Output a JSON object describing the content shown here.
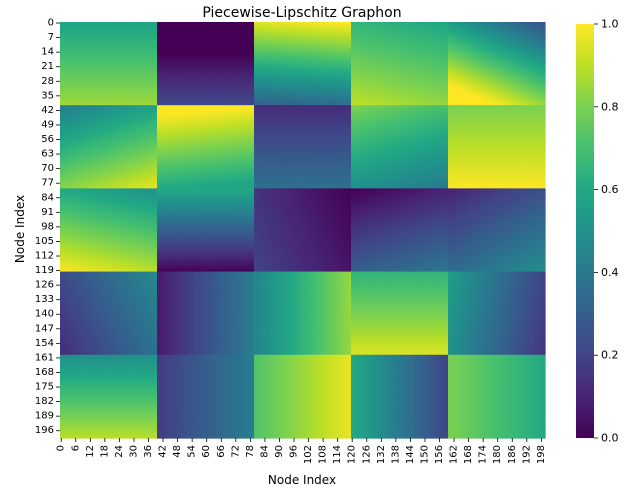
{
  "chart_data": {
    "type": "heatmap",
    "title": "Piecewise-Lipschitz Graphon",
    "xlabel": "Node Index",
    "ylabel": "Node Index",
    "n": 200,
    "x_tick_labels": [
      "0",
      "6",
      "12",
      "18",
      "24",
      "30",
      "36",
      "42",
      "48",
      "54",
      "60",
      "66",
      "72",
      "78",
      "84",
      "90",
      "96",
      "102",
      "108",
      "114",
      "120",
      "126",
      "132",
      "138",
      "144",
      "150",
      "156",
      "162",
      "168",
      "174",
      "180",
      "186",
      "192",
      "198"
    ],
    "y_tick_labels": [
      "0",
      "7",
      "14",
      "21",
      "28",
      "35",
      "42",
      "49",
      "56",
      "63",
      "70",
      "77",
      "84",
      "91",
      "98",
      "105",
      "112",
      "119",
      "126",
      "133",
      "140",
      "147",
      "154",
      "161",
      "168",
      "175",
      "182",
      "189",
      "196"
    ],
    "block_boundaries": [
      0,
      40,
      80,
      120,
      160,
      200
    ],
    "blocks": [
      [
        {
          "a": 0.72,
          "b": 0.0,
          "c": 0.28
        },
        {
          "a": 0.05,
          "b": 0.0,
          "c": 0.35
        },
        {
          "a": 0.65,
          "b": 0.05,
          "c": -0.65
        },
        {
          "a": 0.75,
          "b": -0.07,
          "c": 0.25
        },
        {
          "a": 0.7,
          "b": -0.3,
          "c": 0.6
        }
      ],
      [
        {
          "a": 0.7,
          "b": 0.15,
          "c": 0.4
        },
        {
          "a": 0.8,
          "b": -0.05,
          "c": -0.45
        },
        {
          "a": 0.25,
          "b": 0.0,
          "c": 0.25
        },
        {
          "a": 0.6,
          "b": -0.1,
          "c": -0.3
        },
        {
          "a": 0.9,
          "b": 0.0,
          "c": 0.2
        }
      ],
      [
        {
          "a": 0.75,
          "b": -0.1,
          "c": 0.4
        },
        {
          "a": 0.3,
          "b": 0.0,
          "c": -0.6
        },
        {
          "a": 0.1,
          "b": -0.15,
          "c": 0.05
        },
        {
          "a": 0.2,
          "b": 0.1,
          "c": 0.3
        },
        {
          "a": 0.3,
          "b": 0.15,
          "c": 0.25
        }
      ],
      [
        {
          "a": 0.3,
          "b": 0.25,
          "c": -0.1
        },
        {
          "a": 0.25,
          "b": 0.35,
          "c": 0.0
        },
        {
          "a": 0.65,
          "b": 0.4,
          "c": 0.0
        },
        {
          "a": 0.8,
          "b": 0.0,
          "c": 0.3
        },
        {
          "a": 0.35,
          "b": -0.35,
          "c": -0.05
        }
      ],
      [
        {
          "a": 0.7,
          "b": 0.0,
          "c": 0.4
        },
        {
          "a": 0.3,
          "b": 0.25,
          "c": 0.0
        },
        {
          "a": 0.85,
          "b": 0.25,
          "c": 0.0
        },
        {
          "a": 0.4,
          "b": -0.4,
          "c": 0.0
        },
        {
          "a": 0.7,
          "b": -0.2,
          "c": 0.0
        }
      ]
    ],
    "colormap": "viridis",
    "vmin": 0.0,
    "vmax": 1.0,
    "colorbar_ticks": [
      "0.0",
      "0.2",
      "0.4",
      "0.6",
      "0.8",
      "1.0"
    ],
    "grid": false
  }
}
